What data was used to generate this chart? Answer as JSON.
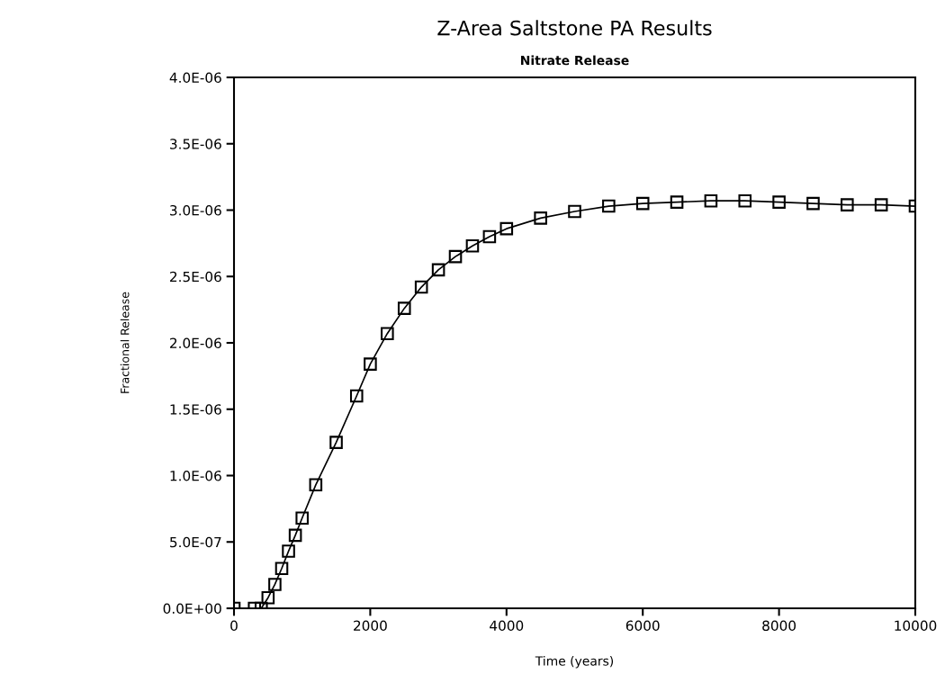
{
  "chart_data": {
    "type": "line",
    "title": "Z-Area Saltstone PA Results",
    "subtitle": "Nitrate Release",
    "xlabel": "Time (years)",
    "ylabel": "Fractional Release",
    "marker": "square",
    "line_style": "solid",
    "grid": false,
    "x": [
      0,
      300,
      400,
      500,
      600,
      700,
      800,
      900,
      1000,
      1200,
      1500,
      1800,
      2000,
      2250,
      2500,
      2750,
      3000,
      3250,
      3500,
      3750,
      4000,
      4500,
      5000,
      5500,
      6000,
      6500,
      7000,
      7500,
      8000,
      8500,
      9000,
      9500,
      10000
    ],
    "series": [
      {
        "color": "#000000",
        "values": [
          0,
          0,
          0,
          8e-08,
          1.8e-07,
          3e-07,
          4.3e-07,
          5.5e-07,
          6.8e-07,
          9.3e-07,
          1.25e-06,
          1.6e-06,
          1.84e-06,
          2.07e-06,
          2.26e-06,
          2.42e-06,
          2.55e-06,
          2.65e-06,
          2.73e-06,
          2.8e-06,
          2.86e-06,
          2.94e-06,
          2.99e-06,
          3.03e-06,
          3.05e-06,
          3.06e-06,
          3.07e-06,
          3.07e-06,
          3.06e-06,
          3.05e-06,
          3.04e-06,
          3.04e-06,
          3.03e-06
        ]
      }
    ],
    "xlim": [
      0,
      10000
    ],
    "xticks": [
      0,
      2000,
      4000,
      6000,
      8000,
      10000
    ],
    "ylim": [
      0,
      4e-06
    ],
    "yticks": [
      {
        "value": 0,
        "label": "0.0E+00"
      },
      {
        "value": 5e-07,
        "label": "5.0E-07"
      },
      {
        "value": 1e-06,
        "label": "1.0E-06"
      },
      {
        "value": 1.5e-06,
        "label": "1.5E-06"
      },
      {
        "value": 2e-06,
        "label": "2.0E-06"
      },
      {
        "value": 2.5e-06,
        "label": "2.5E-06"
      },
      {
        "value": 3e-06,
        "label": "3.0E-06"
      },
      {
        "value": 3.5e-06,
        "label": "3.5E-06"
      },
      {
        "value": 4e-06,
        "label": "4.0E-06"
      }
    ]
  }
}
